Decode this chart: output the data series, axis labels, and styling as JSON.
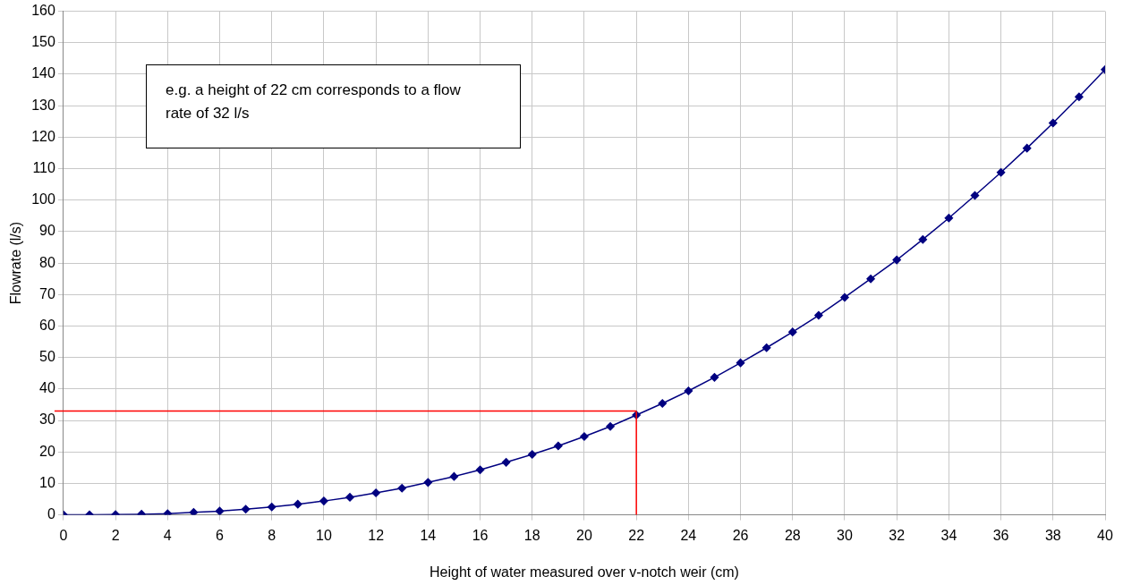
{
  "chart_data": {
    "type": "line",
    "xlabel": "Height of water measured over v-notch weir (cm)",
    "ylabel": "Flowrate (l/s)",
    "x": [
      0,
      1,
      2,
      3,
      4,
      5,
      6,
      7,
      8,
      9,
      10,
      11,
      12,
      13,
      14,
      15,
      16,
      17,
      18,
      19,
      20,
      21,
      22,
      23,
      24,
      25,
      26,
      27,
      28,
      29,
      30,
      31,
      32,
      33,
      34,
      35,
      36,
      37,
      38,
      39,
      40
    ],
    "series": [
      {
        "color": "#000080",
        "values": [
          0,
          0,
          0.1,
          0.2,
          0.4,
          0.8,
          1.2,
          1.8,
          2.5,
          3.4,
          4.4,
          5.6,
          7,
          8.5,
          10.3,
          12.2,
          14.3,
          16.7,
          19.2,
          21.9,
          24.9,
          28.1,
          31.7,
          35.4,
          39.4,
          43.7,
          48.3,
          53.1,
          58.1,
          63.4,
          69.1,
          75,
          81,
          87.5,
          94.3,
          101.5,
          108.8,
          116.5,
          124.5,
          132.8,
          141.5
        ]
      }
    ],
    "xlim": [
      0,
      40
    ],
    "xticks": [
      0,
      2,
      4,
      6,
      8,
      10,
      12,
      14,
      16,
      18,
      20,
      22,
      24,
      26,
      28,
      30,
      32,
      34,
      36,
      38,
      40
    ],
    "ylim": [
      0,
      160
    ],
    "yticks": [
      0,
      10,
      20,
      30,
      40,
      50,
      60,
      70,
      80,
      90,
      100,
      110,
      120,
      130,
      140,
      150,
      160
    ],
    "grid": true,
    "marker": "diamond",
    "line_style": "solid",
    "legend": false,
    "ref_lines": [
      {
        "axis": "y",
        "value": 33,
        "color": "#ff0000"
      },
      {
        "axis": "x",
        "value": 22,
        "color": "#ff0000"
      }
    ],
    "annotations": [
      "e.g. a height of 22 cm corresponds to a flow rate of 32 l/s"
    ]
  }
}
